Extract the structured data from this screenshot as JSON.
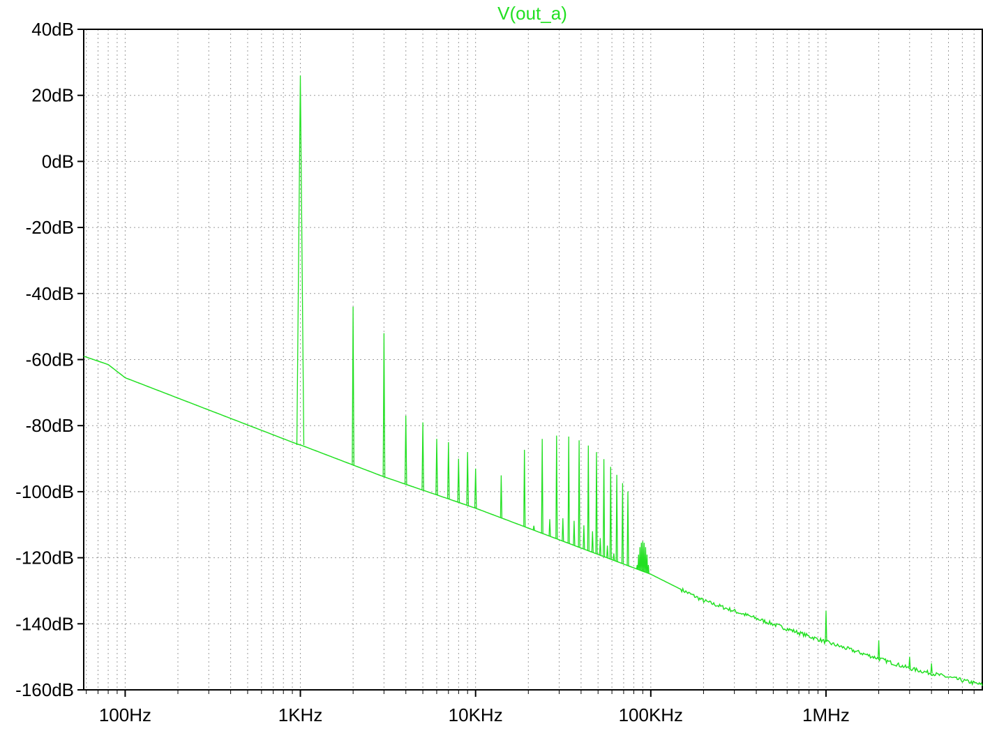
{
  "chart_data": {
    "type": "line",
    "title": "V(out_a)",
    "xlabel": "",
    "ylabel": "",
    "xscale": "log",
    "xlim": [
      58,
      7800000
    ],
    "ylim": [
      -160,
      40
    ],
    "grid": true,
    "trace_color": "#22e022",
    "y_ticks": [
      40,
      20,
      0,
      -20,
      -40,
      -60,
      -80,
      -100,
      -120,
      -140,
      -160
    ],
    "y_tick_labels": [
      "40dB",
      "20dB",
      "0dB",
      "-20dB",
      "-40dB",
      "-60dB",
      "-80dB",
      "-100dB",
      "-120dB",
      "-140dB",
      "-160dB"
    ],
    "x_ticks": [
      100,
      1000,
      10000,
      100000,
      1000000
    ],
    "x_tick_labels": [
      "100Hz",
      "1KHz",
      "10KHz",
      "100KHz",
      "1MHz"
    ],
    "series": [
      {
        "name": "V(out_a)",
        "floor": [
          [
            58,
            -59
          ],
          [
            80,
            -61.5
          ],
          [
            100,
            -65.5
          ],
          [
            950,
            -85.5
          ],
          [
            1020,
            -86
          ],
          [
            3000,
            -95.5
          ],
          [
            10000,
            -105
          ],
          [
            50000,
            -119
          ],
          [
            100000,
            -125
          ],
          [
            200000,
            -133
          ],
          [
            1000000,
            -145.5
          ],
          [
            3000000,
            -153.5
          ],
          [
            7800000,
            -158.5
          ]
        ],
        "harmonics": [
          [
            1000,
            26
          ],
          [
            2000,
            -44
          ],
          [
            3000,
            -52
          ],
          [
            4000,
            -77
          ],
          [
            5000,
            -79
          ],
          [
            6000,
            -84
          ],
          [
            7000,
            -85
          ],
          [
            8000,
            -90
          ],
          [
            9000,
            -88
          ],
          [
            10000,
            -93
          ]
        ],
        "modulation_spurs": {
          "center": 30000,
          "peak": -83,
          "spacing": 5000,
          "range": [
            14000,
            75000
          ]
        },
        "secondary_hump": {
          "center": 90000,
          "peak": -115
        },
        "high_freq_spurs": [
          [
            1000000,
            -136
          ],
          [
            2000000,
            -145
          ],
          [
            3000000,
            -150
          ],
          [
            4000000,
            -152
          ]
        ]
      }
    ]
  }
}
